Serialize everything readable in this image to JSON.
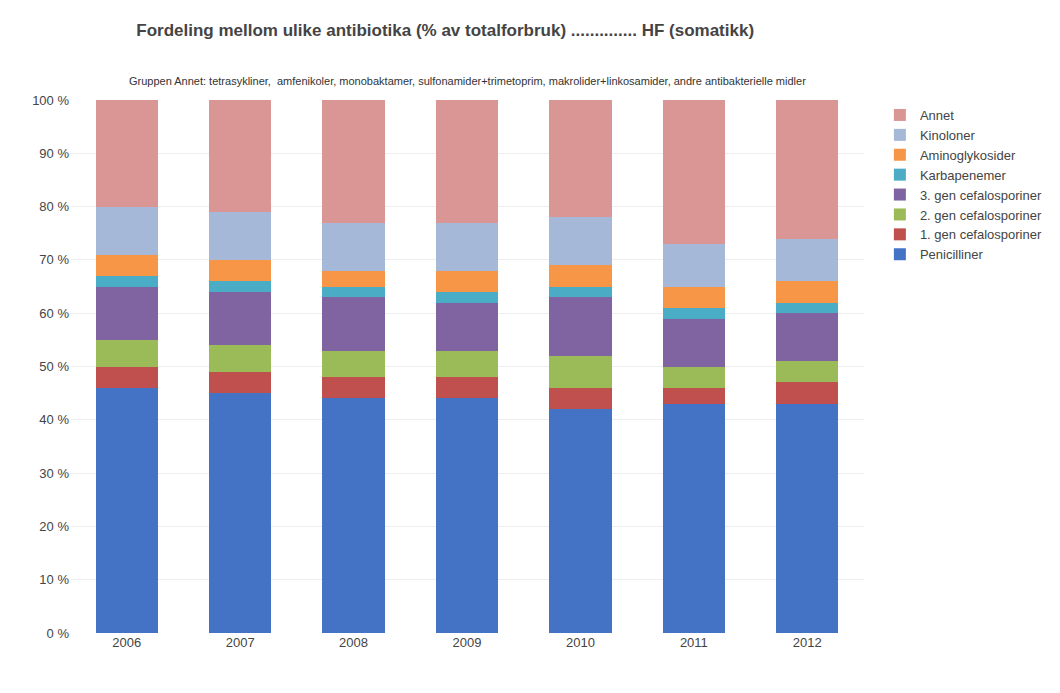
{
  "chart_data": {
    "type": "bar",
    "stacked": true,
    "title": "Fordeling mellom ulike antibiotika (% av totalforbruk) .............. HF (somatikk)",
    "subtitle": "Gruppen Annet: tetrasykliner,  amfenikoler, monobaktamer, sulfonamider+trimetoprim, makrolider+linkosamider, andre antibakterielle midler",
    "categories": [
      "2006",
      "2007",
      "2008",
      "2009",
      "2010",
      "2011",
      "2012"
    ],
    "series": [
      {
        "name": "Penicilliner",
        "color": "#4472C4",
        "values": [
          46,
          45,
          44,
          44,
          42,
          43,
          43
        ]
      },
      {
        "name": "1. gen cefalosporiner",
        "color": "#C0504D",
        "values": [
          4,
          4,
          4,
          4,
          4,
          3,
          4
        ]
      },
      {
        "name": "2. gen cefalosporiner",
        "color": "#9BBB59",
        "values": [
          5,
          5,
          5,
          5,
          6,
          4,
          4
        ]
      },
      {
        "name": "3. gen cefalosporiner",
        "color": "#8064A2",
        "values": [
          10,
          10,
          10,
          9,
          11,
          9,
          9
        ]
      },
      {
        "name": "Karbapenemer",
        "color": "#4BACC6",
        "values": [
          2,
          2,
          2,
          2,
          2,
          2,
          2
        ]
      },
      {
        "name": "Aminoglykosider",
        "color": "#F79646",
        "values": [
          4,
          4,
          3,
          4,
          4,
          4,
          4
        ]
      },
      {
        "name": "Kinoloner",
        "color": "#A5B8D7",
        "values": [
          9,
          9,
          9,
          9,
          9,
          8,
          8
        ]
      },
      {
        "name": "Annet",
        "color": "#D99694",
        "values": [
          20,
          21,
          23,
          23,
          22,
          27,
          26
        ]
      }
    ],
    "ylim": [
      0,
      100
    ],
    "yticks": [
      {
        "value": 0,
        "label": "0 %"
      },
      {
        "value": 10,
        "label": "10 %"
      },
      {
        "value": 20,
        "label": "20 %"
      },
      {
        "value": 30,
        "label": "30 %"
      },
      {
        "value": 40,
        "label": "40 %"
      },
      {
        "value": 50,
        "label": "50 %"
      },
      {
        "value": 60,
        "label": "60 %"
      },
      {
        "value": 70,
        "label": "70 %"
      },
      {
        "value": 80,
        "label": "80 %"
      },
      {
        "value": 90,
        "label": "90 %"
      },
      {
        "value": 100,
        "label": "100 %"
      }
    ],
    "grid": true,
    "legend": "right"
  }
}
